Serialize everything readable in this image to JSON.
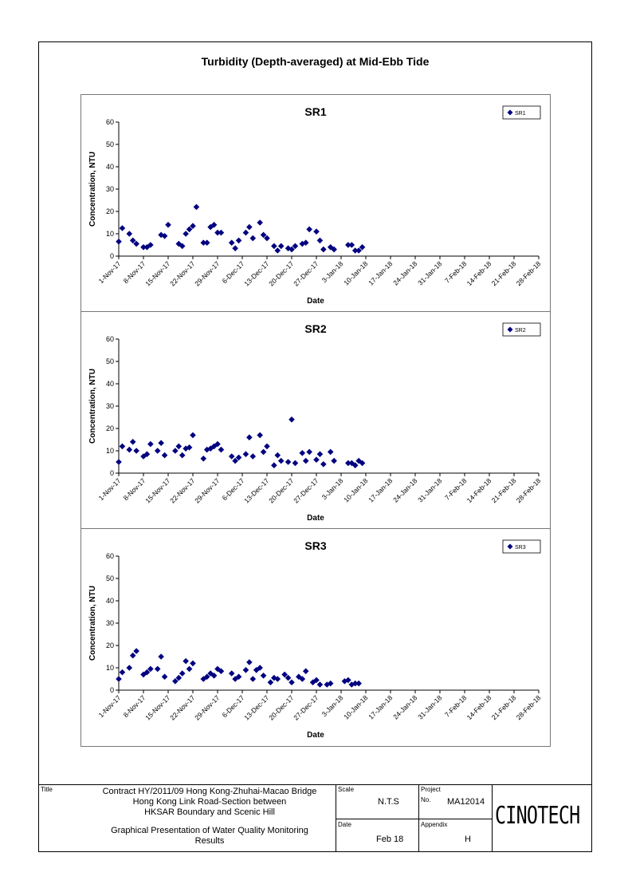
{
  "page_title": "Turbidity (Depth-averaged) at Mid-Ebb Tide",
  "chart_data": [
    {
      "type": "scatter",
      "title": "SR1",
      "xlabel": "Date",
      "ylabel": "Concentration, NTU",
      "ylim": [
        0,
        60
      ],
      "yticks": [
        0,
        10,
        20,
        30,
        40,
        50,
        60
      ],
      "xlim": [
        "2017-11-01",
        "2018-02-28"
      ],
      "xticks": [
        "1-Nov-17",
        "8-Nov-17",
        "15-Nov-17",
        "22-Nov-17",
        "29-Nov-17",
        "6-Dec-17",
        "13-Dec-17",
        "20-Dec-17",
        "27-Dec-17",
        "3-Jan-18",
        "10-Jan-18",
        "17-Jan-18",
        "24-Jan-18",
        "31-Jan-18",
        "7-Feb-18",
        "14-Feb-18",
        "21-Feb-18",
        "28-Feb-18"
      ],
      "legend": "top-right",
      "grid": false,
      "series": [
        {
          "name": "SR1",
          "color": "#000080",
          "marker": "diamond",
          "points": [
            [
              "2017-11-01",
              6.5
            ],
            [
              "2017-11-02",
              12.5
            ],
            [
              "2017-11-04",
              10
            ],
            [
              "2017-11-05",
              7
            ],
            [
              "2017-11-06",
              5.5
            ],
            [
              "2017-11-08",
              4
            ],
            [
              "2017-11-09",
              4
            ],
            [
              "2017-11-10",
              5
            ],
            [
              "2017-11-13",
              9.5
            ],
            [
              "2017-11-14",
              9
            ],
            [
              "2017-11-15",
              14
            ],
            [
              "2017-11-18",
              5.5
            ],
            [
              "2017-11-19",
              4.5
            ],
            [
              "2017-11-20",
              10
            ],
            [
              "2017-11-21",
              12
            ],
            [
              "2017-11-22",
              13.5
            ],
            [
              "2017-11-23",
              22
            ],
            [
              "2017-11-25",
              6
            ],
            [
              "2017-11-26",
              6
            ],
            [
              "2017-11-27",
              13
            ],
            [
              "2017-11-28",
              14
            ],
            [
              "2017-11-29",
              10.5
            ],
            [
              "2017-11-30",
              10.5
            ],
            [
              "2017-12-03",
              6
            ],
            [
              "2017-12-04",
              3.5
            ],
            [
              "2017-12-05",
              7
            ],
            [
              "2017-12-07",
              10.5
            ],
            [
              "2017-12-08",
              13
            ],
            [
              "2017-12-09",
              8
            ],
            [
              "2017-12-11",
              15
            ],
            [
              "2017-12-12",
              9.5
            ],
            [
              "2017-12-13",
              8
            ],
            [
              "2017-12-15",
              4.5
            ],
            [
              "2017-12-16",
              2.5
            ],
            [
              "2017-12-17",
              4.5
            ],
            [
              "2017-12-19",
              3.5
            ],
            [
              "2017-12-20",
              3
            ],
            [
              "2017-12-21",
              4.5
            ],
            [
              "2017-12-23",
              5.5
            ],
            [
              "2017-12-24",
              6
            ],
            [
              "2017-12-25",
              12
            ],
            [
              "2017-12-27",
              11
            ],
            [
              "2017-12-28",
              7
            ],
            [
              "2017-12-29",
              3
            ],
            [
              "2017-12-31",
              4
            ],
            [
              "2018-01-01",
              3
            ],
            [
              "2018-01-05",
              5
            ],
            [
              "2018-01-06",
              5
            ],
            [
              "2018-01-07",
              2.5
            ],
            [
              "2018-01-08",
              2.5
            ],
            [
              "2018-01-09",
              4
            ]
          ]
        }
      ]
    },
    {
      "type": "scatter",
      "title": "SR2",
      "xlabel": "Date",
      "ylabel": "Concentration, NTU",
      "ylim": [
        0,
        60
      ],
      "yticks": [
        0,
        10,
        20,
        30,
        40,
        50,
        60
      ],
      "xlim": [
        "2017-11-01",
        "2018-02-28"
      ],
      "xticks": [
        "1-Nov-17",
        "8-Nov-17",
        "15-Nov-17",
        "22-Nov-17",
        "29-Nov-17",
        "6-Dec-17",
        "13-Dec-17",
        "20-Dec-17",
        "27-Dec-17",
        "3-Jan-18",
        "10-Jan-18",
        "17-Jan-18",
        "24-Jan-18",
        "31-Jan-18",
        "7-Feb-18",
        "14-Feb-18",
        "21-Feb-18",
        "28-Feb-18"
      ],
      "legend": "top-right",
      "grid": false,
      "series": [
        {
          "name": "SR2",
          "color": "#000080",
          "marker": "diamond",
          "points": [
            [
              "2017-11-01",
              5
            ],
            [
              "2017-11-02",
              12
            ],
            [
              "2017-11-04",
              10.5
            ],
            [
              "2017-11-05",
              14
            ],
            [
              "2017-11-06",
              10
            ],
            [
              "2017-11-08",
              7.5
            ],
            [
              "2017-11-09",
              8.5
            ],
            [
              "2017-11-10",
              13
            ],
            [
              "2017-11-12",
              10
            ],
            [
              "2017-11-13",
              13.5
            ],
            [
              "2017-11-14",
              8
            ],
            [
              "2017-11-17",
              10
            ],
            [
              "2017-11-18",
              12
            ],
            [
              "2017-11-19",
              8
            ],
            [
              "2017-11-20",
              11
            ],
            [
              "2017-11-21",
              11.5
            ],
            [
              "2017-11-22",
              17
            ],
            [
              "2017-11-25",
              6.5
            ],
            [
              "2017-11-26",
              10.5
            ],
            [
              "2017-11-27",
              11
            ],
            [
              "2017-11-28",
              12
            ],
            [
              "2017-11-29",
              13
            ],
            [
              "2017-11-30",
              10.5
            ],
            [
              "2017-12-03",
              7.5
            ],
            [
              "2017-12-04",
              5.5
            ],
            [
              "2017-12-05",
              7
            ],
            [
              "2017-12-07",
              8.5
            ],
            [
              "2017-12-08",
              16
            ],
            [
              "2017-12-09",
              7.5
            ],
            [
              "2017-12-11",
              17
            ],
            [
              "2017-12-12",
              9.5
            ],
            [
              "2017-12-13",
              12
            ],
            [
              "2017-12-15",
              3.5
            ],
            [
              "2017-12-16",
              8
            ],
            [
              "2017-12-17",
              5.5
            ],
            [
              "2017-12-19",
              5
            ],
            [
              "2017-12-20",
              24
            ],
            [
              "2017-12-21",
              4.5
            ],
            [
              "2017-12-23",
              9
            ],
            [
              "2017-12-24",
              5.5
            ],
            [
              "2017-12-25",
              9.5
            ],
            [
              "2017-12-27",
              6
            ],
            [
              "2017-12-28",
              8.5
            ],
            [
              "2017-12-29",
              4
            ],
            [
              "2017-12-31",
              9.5
            ],
            [
              "2018-01-01",
              5.5
            ],
            [
              "2018-01-05",
              4.5
            ],
            [
              "2018-01-06",
              4.5
            ],
            [
              "2018-01-07",
              3.5
            ],
            [
              "2018-01-08",
              5.5
            ],
            [
              "2018-01-09",
              4.5
            ]
          ]
        }
      ]
    },
    {
      "type": "scatter",
      "title": "SR3",
      "xlabel": "Date",
      "ylabel": "Concentration, NTU",
      "ylim": [
        0,
        60
      ],
      "yticks": [
        0,
        10,
        20,
        30,
        40,
        50,
        60
      ],
      "xlim": [
        "2017-11-01",
        "2018-02-28"
      ],
      "xticks": [
        "1-Nov-17",
        "8-Nov-17",
        "15-Nov-17",
        "22-Nov-17",
        "29-Nov-17",
        "6-Dec-17",
        "13-Dec-17",
        "20-Dec-17",
        "27-Dec-17",
        "3-Jan-18",
        "10-Jan-18",
        "17-Jan-18",
        "24-Jan-18",
        "31-Jan-18",
        "7-Feb-18",
        "14-Feb-18",
        "21-Feb-18",
        "28-Feb-18"
      ],
      "legend": "top-right",
      "grid": false,
      "series": [
        {
          "name": "SR3",
          "color": "#000080",
          "marker": "diamond",
          "points": [
            [
              "2017-11-01",
              5
            ],
            [
              "2017-11-02",
              8
            ],
            [
              "2017-11-04",
              10
            ],
            [
              "2017-11-05",
              15.5
            ],
            [
              "2017-11-06",
              17.5
            ],
            [
              "2017-11-08",
              7
            ],
            [
              "2017-11-09",
              8
            ],
            [
              "2017-11-10",
              9.5
            ],
            [
              "2017-11-12",
              9.5
            ],
            [
              "2017-11-13",
              15
            ],
            [
              "2017-11-14",
              6
            ],
            [
              "2017-11-17",
              4
            ],
            [
              "2017-11-18",
              5.5
            ],
            [
              "2017-11-19",
              7.5
            ],
            [
              "2017-11-20",
              13
            ],
            [
              "2017-11-21",
              9.5
            ],
            [
              "2017-11-22",
              12
            ],
            [
              "2017-11-25",
              5
            ],
            [
              "2017-11-26",
              6
            ],
            [
              "2017-11-27",
              7.5
            ],
            [
              "2017-11-28",
              6.5
            ],
            [
              "2017-11-29",
              9.5
            ],
            [
              "2017-11-30",
              8.5
            ],
            [
              "2017-12-03",
              7.5
            ],
            [
              "2017-12-04",
              5
            ],
            [
              "2017-12-05",
              6
            ],
            [
              "2017-12-07",
              9
            ],
            [
              "2017-12-08",
              12.5
            ],
            [
              "2017-12-09",
              5
            ],
            [
              "2017-12-10",
              9
            ],
            [
              "2017-12-11",
              10
            ],
            [
              "2017-12-12",
              6.5
            ],
            [
              "2017-12-14",
              3.5
            ],
            [
              "2017-12-15",
              5.5
            ],
            [
              "2017-12-16",
              5
            ],
            [
              "2017-12-18",
              7
            ],
            [
              "2017-12-19",
              5.5
            ],
            [
              "2017-12-20",
              3.5
            ],
            [
              "2017-12-22",
              6
            ],
            [
              "2017-12-23",
              5
            ],
            [
              "2017-12-24",
              8.5
            ],
            [
              "2017-12-26",
              3.5
            ],
            [
              "2017-12-27",
              4.5
            ],
            [
              "2017-12-28",
              2.5
            ],
            [
              "2017-12-30",
              2.5
            ],
            [
              "2017-12-31",
              3
            ],
            [
              "2018-01-04",
              4
            ],
            [
              "2018-01-05",
              4.5
            ],
            [
              "2018-01-06",
              2.5
            ],
            [
              "2018-01-07",
              3
            ],
            [
              "2018-01-08",
              3
            ]
          ]
        }
      ]
    }
  ],
  "title_block": {
    "title_label": "Title",
    "title_text": [
      "Contract HY/2011/09 Hong Kong-Zhuhai-Macao Bridge",
      "Hong Kong Link Road-Section between",
      "HKSAR Boundary and Scenic Hill"
    ],
    "subtitle_text": [
      "Graphical Presentation of Water Quality Monitoring",
      "Results"
    ],
    "scale_label": "Scale",
    "scale_value": "N.T.S",
    "project_label": "Project",
    "project_no_label": "No.",
    "project_no": "MA12014",
    "date_label": "Date",
    "date_value": "Feb 18",
    "appendix_label": "Appendix",
    "appendix_value": "H",
    "logo": "CINOTECH"
  }
}
